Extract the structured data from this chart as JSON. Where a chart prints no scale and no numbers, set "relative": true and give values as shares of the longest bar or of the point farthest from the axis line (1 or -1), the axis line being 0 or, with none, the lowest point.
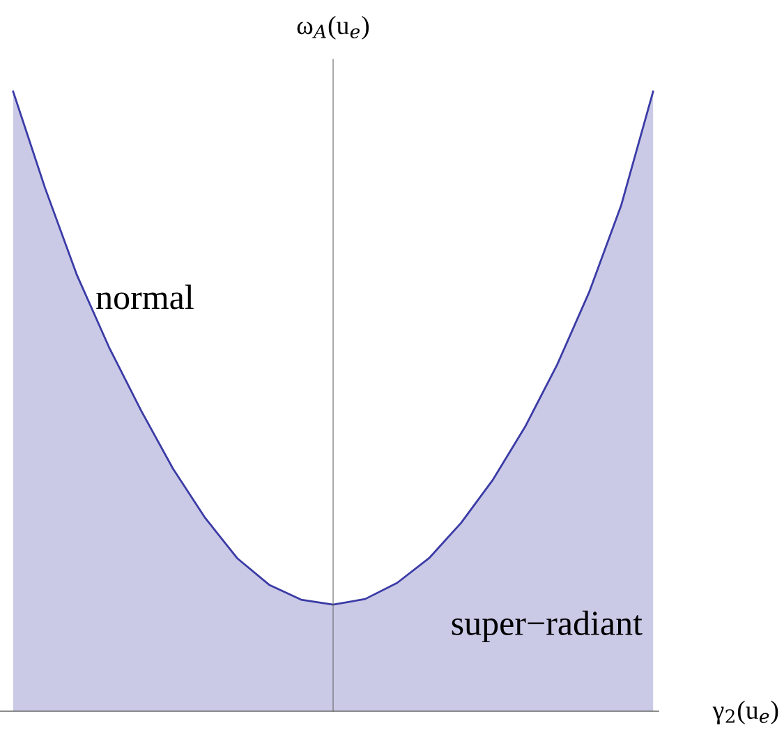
{
  "chart_data": {
    "type": "area",
    "relative": true,
    "xlabel": "γ$_{2}$(u$_{e}$)",
    "ylabel": "ω$_{A}$(u$_{e}$)",
    "categories": [
      null,
      null,
      null,
      null,
      null,
      null,
      null,
      null,
      null,
      null,
      null,
      null,
      null,
      null,
      null,
      null,
      null,
      null,
      null,
      null,
      null
    ],
    "series": [
      {
        "color": "#3b3ba6",
        "values": [
          1.0,
          0.844,
          0.703,
          0.587,
          0.485,
          0.391,
          0.312,
          0.247,
          0.204,
          0.18,
          0.172,
          0.181,
          0.207,
          0.247,
          0.304,
          0.374,
          0.459,
          0.559,
          0.676,
          0.816,
          1.0
        ]
      }
    ],
    "annotations": [
      "normal",
      "super−radiant"
    ],
    "legend": false
  }
}
